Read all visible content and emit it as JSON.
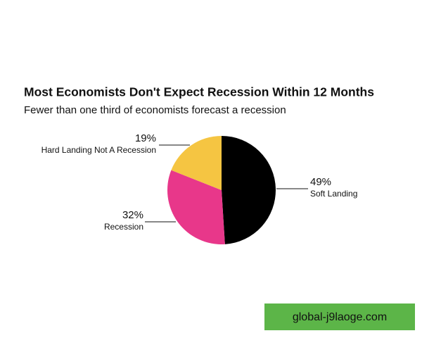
{
  "chart_data": {
    "type": "pie",
    "title": "Most Economists Don't Expect Recession Within 12 Months",
    "subtitle": "Fewer than one third of economists forecast a recession",
    "categories": [
      "Soft Landing",
      "Recession",
      "Hard Landing Not A Recession"
    ],
    "values": [
      49,
      32,
      19
    ],
    "value_labels": [
      "49%",
      "32%",
      "19%"
    ],
    "colors": [
      "#000000",
      "#e8378a",
      "#f5c542"
    ]
  },
  "watermark": "global-j9laoge.com"
}
